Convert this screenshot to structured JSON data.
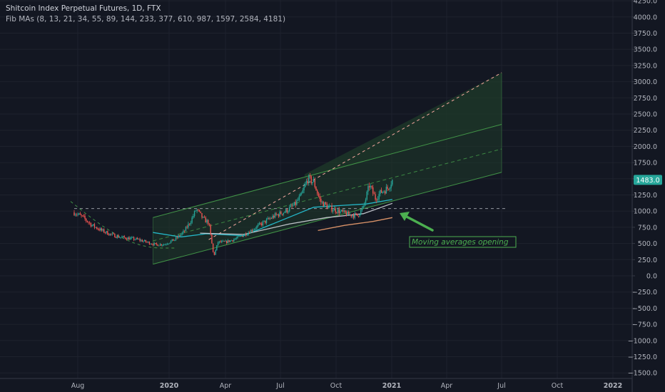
{
  "header": {
    "title": "Shitcoin Index Perpetual Futures, 1D, FTX",
    "indicator": "Fib MAs (8, 13, 21, 34, 55, 89, 144, 233, 377, 610, 987, 1597, 2584, 4181)"
  },
  "price_tag": "1483.0",
  "annotation": "Moving averages opening",
  "colors": {
    "background": "#131722",
    "grid": "#1e222d",
    "axis_text": "#b2b5be",
    "up_candle": "#26a69a",
    "down_candle": "#ef5350",
    "price_tag": "#26a69a",
    "channel_line": "#4caf50",
    "channel_fill": "#1f3b2a",
    "dashed_trend": "#f7a8a0",
    "annotation": "#4caf50",
    "ma_teal": "#26c6da",
    "ma_white": "#d1d4dc",
    "ma_orange": "#f0a070"
  },
  "chart_data": {
    "type": "candlestick",
    "y_axis": {
      "range": [
        -1550,
        4400
      ],
      "ticks": [
        "4250.0",
        "4000.0",
        "3750.0",
        "3500.0",
        "3250.0",
        "3000.0",
        "2750.0",
        "2500.0",
        "2250.0",
        "2000.0",
        "1750.0",
        "1500.0",
        "1250.0",
        "1000.0",
        "750.0",
        "500.0",
        "250.0",
        "0.0",
        "−250.0",
        "−500.0",
        "−750.0",
        "−1000.0",
        "−1250.0",
        "−1500.0"
      ]
    },
    "x_axis": {
      "ticks": [
        "Aug",
        "2020",
        "Apr",
        "Jul",
        "Oct",
        "2021",
        "Apr",
        "Jul",
        "Oct",
        "2022"
      ],
      "tick_dates": [
        "2019-08-01",
        "2020-01-01",
        "2020-04-01",
        "2020-07-01",
        "2020-10-01",
        "2021-01-01",
        "2021-04-01",
        "2021-07-01",
        "2021-10-01",
        "2022-01-01"
      ]
    },
    "price_path": [
      [
        "2019-07-26",
        980
      ],
      [
        "2019-08-10",
        900
      ],
      [
        "2019-08-25",
        780
      ],
      [
        "2019-09-10",
        700
      ],
      [
        "2019-09-25",
        640
      ],
      [
        "2019-10-10",
        600
      ],
      [
        "2019-10-25",
        580
      ],
      [
        "2019-11-10",
        560
      ],
      [
        "2019-11-25",
        520
      ],
      [
        "2019-12-10",
        480
      ],
      [
        "2019-12-25",
        490
      ],
      [
        "2020-01-10",
        560
      ],
      [
        "2020-01-25",
        680
      ],
      [
        "2020-02-05",
        850
      ],
      [
        "2020-02-14",
        1030
      ],
      [
        "2020-02-25",
        880
      ],
      [
        "2020-03-05",
        820
      ],
      [
        "2020-03-13",
        300
      ],
      [
        "2020-03-20",
        520
      ],
      [
        "2020-04-01",
        520
      ],
      [
        "2020-04-20",
        580
      ],
      [
        "2020-05-10",
        680
      ],
      [
        "2020-05-30",
        800
      ],
      [
        "2020-06-20",
        920
      ],
      [
        "2020-07-10",
        1000
      ],
      [
        "2020-07-25",
        1100
      ],
      [
        "2020-08-05",
        1250
      ],
      [
        "2020-08-15",
        1500
      ],
      [
        "2020-08-25",
        1450
      ],
      [
        "2020-09-05",
        1150
      ],
      [
        "2020-09-20",
        1050
      ],
      [
        "2020-10-05",
        1000
      ],
      [
        "2020-10-20",
        950
      ],
      [
        "2020-11-05",
        930
      ],
      [
        "2020-11-15",
        1050
      ],
      [
        "2020-11-25",
        1400
      ],
      [
        "2020-12-05",
        1200
      ],
      [
        "2020-12-15",
        1300
      ],
      [
        "2020-12-25",
        1350
      ],
      [
        "2021-01-02",
        1483
      ]
    ],
    "last_price": 1483.0,
    "trend_lines": [
      {
        "name": "cup-curve",
        "style": "dashed"
      },
      {
        "name": "support-1040",
        "style": "dashed",
        "value": 1040
      },
      {
        "name": "parabolic-trend",
        "style": "dashed"
      }
    ],
    "channel": {
      "start": "2019-12-05",
      "end": "2021-07-01",
      "upper_start": 900,
      "upper_end": 2340,
      "mid_start": 540,
      "mid_end": 1960,
      "lower_start": 180,
      "lower_end": 1600
    },
    "fan_top": {
      "start": "2020-08-10",
      "start_value": 1570,
      "end": "2021-07-01",
      "end_value": 3140
    },
    "moving_averages": [
      {
        "color": "teal",
        "points": [
          [
            "2019-12-05",
            670
          ],
          [
            "2020-01-20",
            600
          ],
          [
            "2020-03-01",
            650
          ],
          [
            "2020-05-01",
            620
          ],
          [
            "2020-07-01",
            850
          ],
          [
            "2020-08-25",
            1060
          ],
          [
            "2020-10-15",
            1090
          ],
          [
            "2020-11-20",
            1110
          ],
          [
            "2021-01-02",
            1180
          ]
        ]
      },
      {
        "color": "white",
        "points": [
          [
            "2020-02-20",
            660
          ],
          [
            "2020-05-01",
            640
          ],
          [
            "2020-07-15",
            800
          ],
          [
            "2020-09-15",
            900
          ],
          [
            "2020-11-15",
            960
          ],
          [
            "2021-01-02",
            1120
          ]
        ]
      },
      {
        "color": "orange",
        "points": [
          [
            "2020-09-01",
            700
          ],
          [
            "2020-10-15",
            780
          ],
          [
            "2020-12-01",
            840
          ],
          [
            "2021-01-02",
            900
          ]
        ]
      }
    ]
  }
}
